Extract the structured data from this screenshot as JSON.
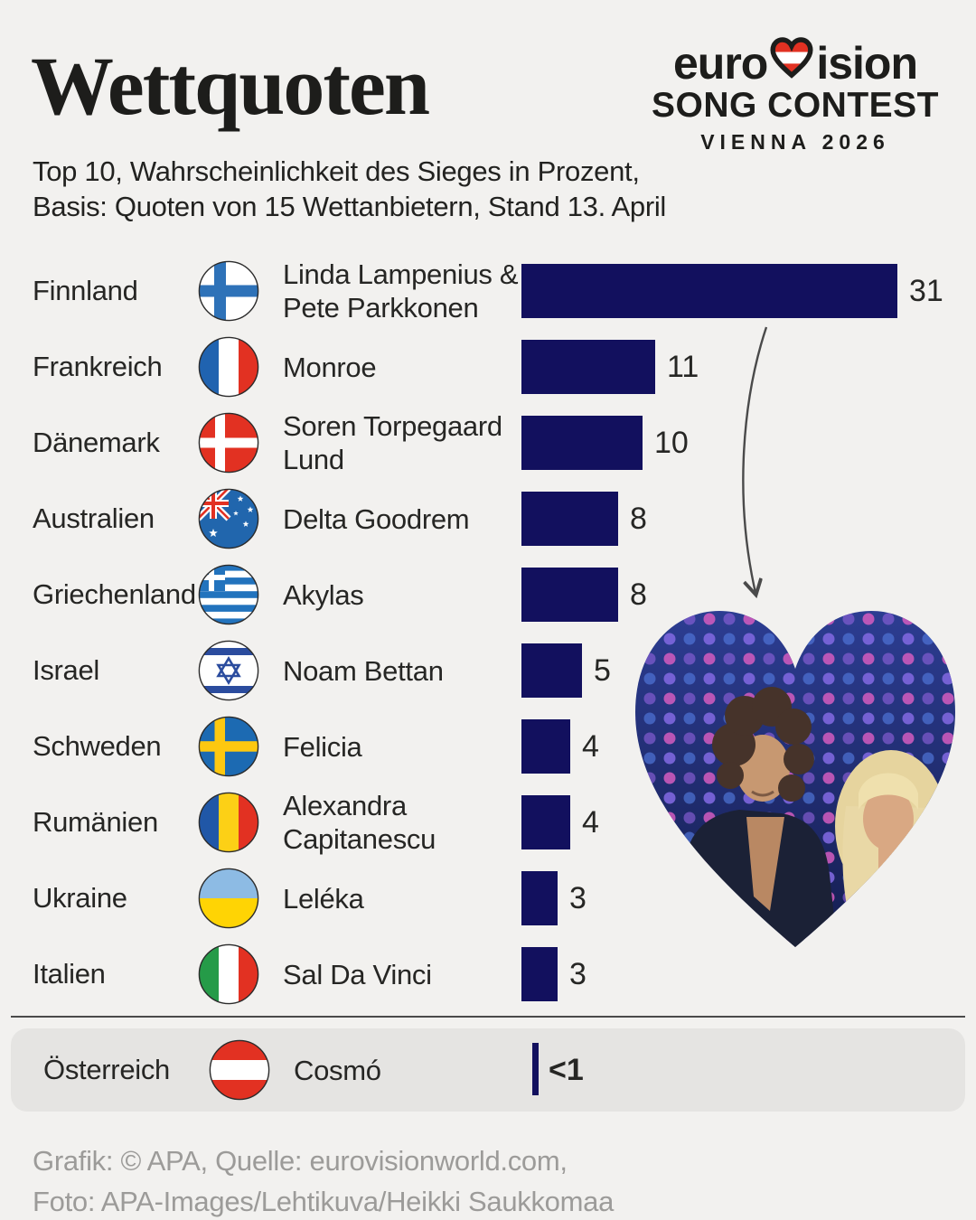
{
  "page": {
    "title": "Wettquoten",
    "subtitle_line1": "Top 10, Wahrscheinlichkeit des Sieges in Prozent,",
    "subtitle_line2": "Basis: Quoten von 15 Wettanbietern, Stand 13. April",
    "footer_line1": "Grafik: © APA, Quelle: eurovisionworld.com,",
    "footer_line2": "Foto: APA-Images/Lehtikuva/Heikki Saukkomaa"
  },
  "logo": {
    "line1_left": "euro",
    "line1_right": "ision",
    "line2": "SONG CONTEST",
    "line3": "VIENNA 2026",
    "heart_red": "#e23122",
    "heart_white": "#ffffff",
    "ink": "#1d1d1b"
  },
  "chart_data": {
    "type": "bar",
    "orientation": "horizontal",
    "title": "Wettquoten",
    "subtitle": "Top 10, Wahrscheinlichkeit des Sieges in Prozent, Basis: Quoten von 15 Wettanbietern, Stand 13. April",
    "unit": "Prozent",
    "xlim": [
      0,
      31
    ],
    "grid": false,
    "legend": false,
    "bar_color": "#12105e",
    "background_color": "#f2f1ef",
    "rows": [
      {
        "country": "Finnland",
        "flag": "fi",
        "artist": "Linda Lampenius & Pete Parkkonen",
        "value": 31,
        "label": "31"
      },
      {
        "country": "Frankreich",
        "flag": "fr",
        "artist": "Monroe",
        "value": 11,
        "label": "11"
      },
      {
        "country": "Dänemark",
        "flag": "dk",
        "artist": "Soren Torpegaard Lund",
        "value": 10,
        "label": "10"
      },
      {
        "country": "Australien",
        "flag": "au",
        "artist": "Delta Goodrem",
        "value": 8,
        "label": "8"
      },
      {
        "country": "Griechenland",
        "flag": "gr",
        "artist": "Akylas",
        "value": 8,
        "label": "8"
      },
      {
        "country": "Israel",
        "flag": "il",
        "artist": "Noam Bettan",
        "value": 5,
        "label": "5"
      },
      {
        "country": "Schweden",
        "flag": "se",
        "artist": "Felicia",
        "value": 4,
        "label": "4"
      },
      {
        "country": "Rumänien",
        "flag": "ro",
        "artist": "Alexandra Capitanescu",
        "value": 4,
        "label": "4"
      },
      {
        "country": "Ukraine",
        "flag": "ua",
        "artist": "Leléka",
        "value": 3,
        "label": "3"
      },
      {
        "country": "Italien",
        "flag": "it",
        "artist": "Sal Da Vinci",
        "value": 3,
        "label": "3"
      }
    ],
    "highlight": {
      "country": "Österreich",
      "flag": "at",
      "artist": "Cosmó",
      "value": 0.5,
      "label": "<1"
    }
  },
  "photo": {
    "shape": "heart",
    "description": "Linda Lampenius & Pete Parkkonen on stage",
    "palette": {
      "stage_blue": "#2e3f96",
      "stage_dark": "#141c4e",
      "led_pink": "#d45cc0",
      "led_purple": "#7e66dd"
    }
  }
}
